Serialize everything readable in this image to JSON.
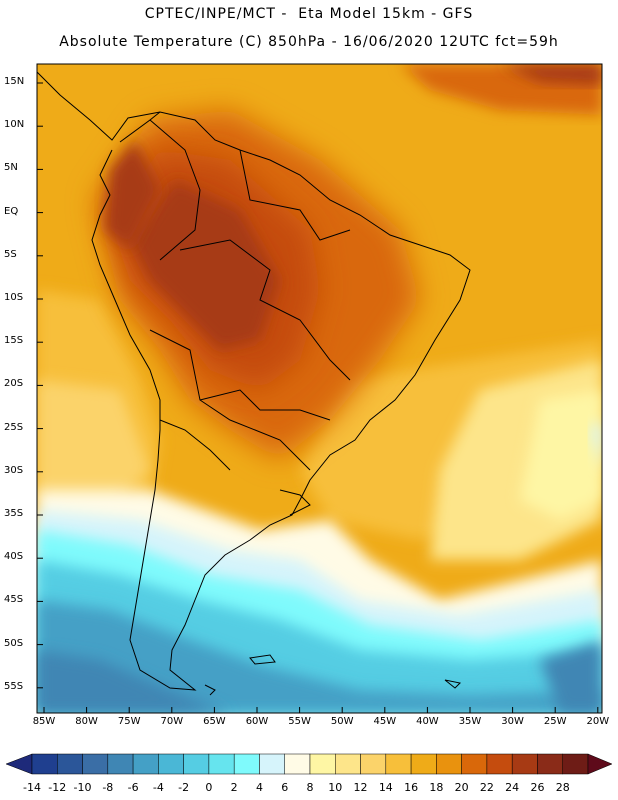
{
  "header": {
    "line1": "CPTEC/INPE/MCT -  Eta Model 15km - GFS",
    "line2": "Absolute Temperature (C) 850hPa - 16/06/2020 12UTC fct=59h"
  },
  "map": {
    "lat_labels": [
      "15N",
      "10N",
      "5N",
      "EQ",
      "5S",
      "10S",
      "15S",
      "20S",
      "25S",
      "30S",
      "35S",
      "40S",
      "45S",
      "50S",
      "55S"
    ],
    "lon_labels": [
      "85W",
      "80W",
      "75W",
      "70W",
      "65W",
      "60W",
      "55W",
      "50W",
      "45W",
      "40W",
      "35W",
      "30W",
      "25W",
      "20W"
    ],
    "frame_color": "#000000",
    "coast_color": "#000000"
  },
  "colorbar": {
    "labels": [
      "-14",
      "-12",
      "-10",
      "-8",
      "-6",
      "-4",
      "-2",
      "0",
      "2",
      "4",
      "6",
      "8",
      "10",
      "12",
      "14",
      "16",
      "18",
      "20",
      "22",
      "24",
      "26",
      "28"
    ],
    "colors": [
      "#1f3f8f",
      "#2b5699",
      "#3a6ea6",
      "#3f86b4",
      "#44a0c6",
      "#4ab7d6",
      "#55cde3",
      "#66e4ee",
      "#7ffafc",
      "#d6f4fb",
      "#fffbe6",
      "#fef6a4",
      "#fde58a",
      "#fbd36a",
      "#f7bf3a",
      "#efab18",
      "#e9920e",
      "#d9680a",
      "#c54c0e",
      "#a73a14",
      "#8a2b18",
      "#6e1c16"
    ],
    "low_arrow_color": "#1e2a7a",
    "high_arrow_color": "#5e0a1a"
  }
}
